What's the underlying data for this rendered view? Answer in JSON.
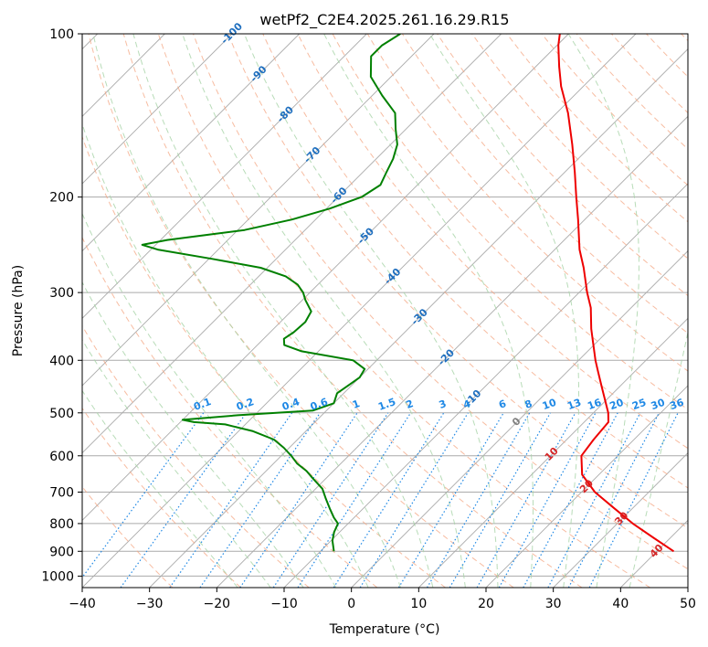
{
  "chart_data": {
    "type": "line",
    "title": "wetPf2_C2E4.2025.261.16.29.R15",
    "xlabel": "Temperature (°C)",
    "ylabel": "Pressure (hPa)",
    "xlim": [
      -40,
      50
    ],
    "ylim": [
      1050,
      100
    ],
    "y_scale": "log",
    "grid": true,
    "x_ticks": [
      -40,
      -30,
      -20,
      -10,
      0,
      10,
      20,
      30,
      40,
      50
    ],
    "y_ticks": [
      100,
      200,
      300,
      400,
      500,
      600,
      700,
      800,
      900,
      1000
    ],
    "skew_degrees": 45,
    "isotherm_labels": [
      "-100",
      "-90",
      "-80",
      "-70",
      "-60",
      "-50",
      "-40",
      "-30",
      "-20",
      "-10",
      "0",
      "10",
      "20",
      "30",
      "40"
    ],
    "mixing_ratio_labels": [
      "0.1",
      "0.2",
      "0.4",
      "0.6",
      "1",
      "1.5",
      "2",
      "3",
      "4",
      "6",
      "8",
      "10",
      "13",
      "16",
      "20",
      "25",
      "30",
      "36"
    ],
    "mixing_ratio_values": [
      0.1,
      0.2,
      0.4,
      0.6,
      1,
      1.5,
      2,
      3,
      4,
      6,
      8,
      10,
      13,
      16,
      20,
      25,
      30,
      36
    ],
    "colors": {
      "temperature": "#ee0000",
      "dewpoint": "#008000",
      "isotherm": "#aaaaaa",
      "dry_adiabat": "#f4a582",
      "moist_adiabat": "#a6d3a6",
      "mixing_ratio": "#1e88e5",
      "cold_label": "#1f6fbf",
      "warm_label": "#d62728",
      "zero_label": "#808080"
    },
    "series": [
      {
        "p": [
          900,
          850,
          800,
          750,
          700,
          650,
          600,
          560,
          520,
          500,
          470,
          450,
          420,
          400,
          370,
          350,
          320,
          300,
          270,
          250,
          220,
          200,
          180,
          160,
          140,
          125,
          115,
          105,
          100
        ],
        "t": [
          42.5,
          37.5,
          32.3,
          27.3,
          22.0,
          17.5,
          14.6,
          14.0,
          13.6,
          12.2,
          9.5,
          7.6,
          4.6,
          2.5,
          -0.6,
          -2.8,
          -6.0,
          -8.8,
          -13.0,
          -16.3,
          -21.0,
          -24.6,
          -28.5,
          -33.0,
          -38.3,
          -43.3,
          -46.5,
          -49.8,
          -51.3
        ]
      },
      {
        "p": [
          900,
          860,
          830,
          800,
          780,
          750,
          720,
          690,
          660,
          640,
          620,
          600,
          580,
          560,
          540,
          525,
          520,
          515,
          505,
          495,
          480,
          460,
          445,
          430,
          415,
          400,
          385,
          375,
          365,
          355,
          340,
          325,
          310,
          300,
          290,
          280,
          270,
          260,
          250,
          245,
          240,
          230,
          220,
          210,
          200,
          190,
          180,
          170,
          160,
          150,
          140,
          130,
          120,
          110,
          105,
          100
        ],
        "t": [
          -8.0,
          -9.8,
          -10.8,
          -11.5,
          -13.0,
          -15.0,
          -17.0,
          -19.0,
          -22.0,
          -24.0,
          -26.5,
          -28.5,
          -30.8,
          -33.5,
          -38.0,
          -43.0,
          -48.0,
          -50.0,
          -42.5,
          -32.0,
          -30.0,
          -31.0,
          -30.5,
          -30.0,
          -30.5,
          -33.5,
          -42.5,
          -46.0,
          -47.0,
          -46.5,
          -46.3,
          -47.0,
          -49.5,
          -51.0,
          -53.0,
          -56.0,
          -61.0,
          -69.5,
          -79.0,
          -82.0,
          -79.0,
          -69.0,
          -63.5,
          -59.5,
          -56.5,
          -55.5,
          -56.5,
          -57.5,
          -59.0,
          -61.5,
          -64.0,
          -68.5,
          -73.0,
          -76.0,
          -76.0,
          -75.0
        ]
      }
    ]
  }
}
